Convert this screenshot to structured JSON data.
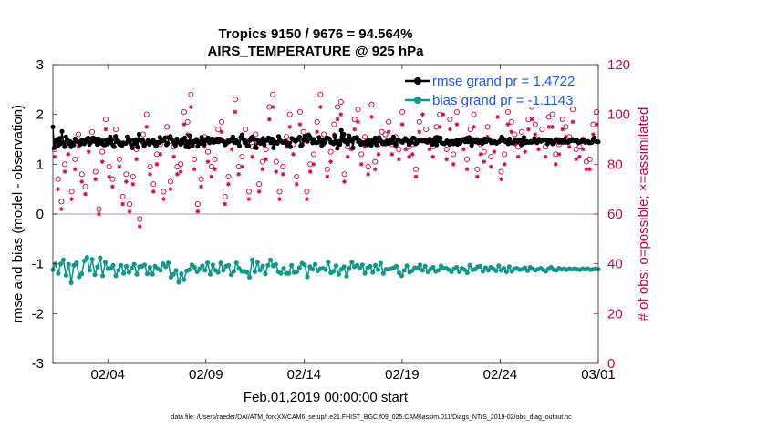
{
  "chart_data": {
    "type": "line",
    "title": "Tropics 9150 / 9676 = 94.564%",
    "subtitle": "AIRS_TEMPERATURE @ 925 hPa",
    "xlabel": "Feb.01,2019 00:00:00 start",
    "ylabel": "rmse and bias (model - observation)",
    "ylabel_right": "# of obs: o=possible; ×=assimilated",
    "ylim": [
      -3,
      3
    ],
    "ylim_right": [
      0,
      120
    ],
    "yticks": [
      "-3",
      "-2",
      "-1",
      "0",
      "1",
      "2",
      "3"
    ],
    "yticks_right": [
      "0",
      "20",
      "40",
      "60",
      "80",
      "100",
      "120"
    ],
    "xlim_days": [
      0.2,
      28.0
    ],
    "xticks": [
      {
        "label": "02/04",
        "day": 3
      },
      {
        "label": "02/09",
        "day": 8
      },
      {
        "label": "02/14",
        "day": 13
      },
      {
        "label": "02/19",
        "day": 18
      },
      {
        "label": "02/24",
        "day": 23
      },
      {
        "label": "03/01",
        "day": 28
      }
    ],
    "legend_position": "top-right",
    "footer": "data file: /Users/raeder/DAI/ATM_forcXX/CAM6_setup/f.e21.FHIST_BGC.f09_025.CAM6assim.011/Diags_NTrS_2019-02/obs_diag_output.nc",
    "series": [
      {
        "name": "rmse grand pr = 1.4722",
        "color": "#000000",
        "values": [
          1.75,
          1.33,
          1.45,
          1.5,
          1.38,
          1.52,
          1.41,
          1.66,
          1.44,
          1.35,
          1.55,
          1.48,
          1.42,
          1.46,
          1.35,
          1.43,
          1.39,
          1.51,
          1.47,
          1.45,
          1.44,
          1.4,
          1.48,
          1.48,
          1.41,
          1.46,
          1.51,
          1.53,
          1.4,
          1.44,
          1.52,
          1.53,
          1.46,
          1.51,
          1.4,
          1.51,
          1.43,
          1.42,
          1.47,
          1.39,
          1.39,
          1.49,
          1.41,
          1.43,
          1.55,
          1.49,
          1.39,
          1.35,
          1.56,
          1.45,
          1.47,
          1.4,
          1.43,
          1.38,
          1.43,
          1.42,
          1.42,
          1.55,
          1.46,
          1.48,
          1.39,
          1.33,
          1.48,
          1.41,
          1.5,
          1.34,
          1.6,
          1.49,
          1.46,
          1.48,
          1.37,
          1.42,
          1.43,
          1.48,
          1.4,
          1.44,
          1.46,
          1.48,
          1.41,
          1.36,
          1.44,
          1.43,
          1.54,
          1.46,
          1.47,
          1.48,
          1.53,
          1.39,
          1.42,
          1.53,
          1.56,
          1.5,
          1.46,
          1.42,
          1.38,
          1.51,
          1.45,
          1.44,
          1.4,
          1.5,
          1.43,
          1.53,
          1.35,
          1.45,
          1.34,
          1.57,
          1.43,
          1.38,
          1.46,
          1.45,
          1.5,
          1.36,
          1.46,
          1.42,
          1.54,
          1.46,
          1.4,
          1.5,
          1.48,
          1.53,
          1.43,
          1.45,
          1.51,
          1.44,
          1.5,
          1.45,
          1.51,
          1.45,
          1.51,
          1.48,
          1.47,
          1.45,
          1.39,
          1.42,
          1.47,
          1.45,
          1.47,
          1.48,
          1.55,
          1.44,
          1.49,
          1.43,
          1.45,
          1.37,
          1.54,
          1.59,
          1.5,
          1.43,
          1.45,
          1.37,
          1.37,
          1.48,
          1.53,
          1.55,
          1.5,
          1.34,
          1.33,
          1.48,
          1.44,
          1.42,
          1.47,
          1.52,
          1.39,
          1.48,
          1.48,
          1.53,
          1.52,
          1.43,
          1.51,
          1.33,
          1.45,
          1.44,
          1.42,
          1.56,
          1.48,
          1.46,
          1.44,
          1.44,
          1.46,
          1.45,
          1.39,
          1.42,
          1.35,
          1.52,
          1.51,
          1.49,
          1.46,
          1.5,
          1.5,
          1.55,
          1.37,
          1.39,
          1.49,
          1.56,
          1.49,
          1.46,
          1.59,
          1.55,
          1.51,
          1.43,
          1.5,
          1.44,
          1.43,
          1.44,
          1.54,
          1.47,
          1.38,
          1.49,
          1.43,
          1.48,
          1.53,
          1.52,
          1.51,
          1.44,
          1.44,
          1.41,
          1.57,
          1.45,
          1.32,
          1.46,
          1.4,
          1.68,
          1.48,
          1.6,
          1.45,
          1.48,
          1.41,
          1.57,
          1.47,
          1.48,
          1.33,
          1.53,
          1.52,
          1.54,
          1.45,
          1.47,
          1.4,
          1.44,
          1.41,
          1.43,
          1.45,
          1.39,
          1.48,
          1.44,
          1.38,
          1.48,
          1.44,
          1.53,
          1.39,
          1.47,
          1.54,
          1.48,
          1.45,
          1.41,
          1.44,
          1.41,
          1.47,
          1.42,
          1.47,
          1.43,
          1.5,
          1.55,
          1.42,
          1.39,
          1.49,
          1.48,
          1.46,
          1.46,
          1.44,
          1.47,
          1.52,
          1.48,
          1.46,
          1.4,
          1.47,
          1.44,
          1.53,
          1.52,
          1.41,
          1.43,
          1.47,
          1.49,
          1.49,
          1.47,
          1.47,
          1.49,
          1.45,
          1.44,
          1.45,
          1.5,
          1.49,
          1.4,
          1.46,
          1.53,
          1.39,
          1.54,
          1.47,
          1.53,
          1.43,
          1.42,
          1.41,
          1.43,
          1.47,
          1.45,
          1.4,
          1.46,
          1.46,
          1.41,
          1.46,
          1.47,
          1.4,
          1.48,
          1.42,
          1.47,
          1.49,
          1.48,
          1.45,
          1.52,
          1.45,
          1.54,
          1.45,
          1.38,
          1.5,
          1.45,
          1.45,
          1.5,
          1.43,
          1.44,
          1.47,
          1.42,
          1.44,
          1.51,
          1.45,
          1.49,
          1.5,
          1.48,
          1.43,
          1.44,
          1.44,
          1.45,
          1.42,
          1.44,
          1.45,
          1.48,
          1.55,
          1.48,
          1.5,
          1.45,
          1.46,
          1.41,
          1.51,
          1.43,
          1.43,
          1.44,
          1.49,
          1.47,
          1.45,
          1.49,
          1.48,
          1.39,
          1.5,
          1.54,
          1.43,
          1.46,
          1.44,
          1.44,
          1.46,
          1.44,
          1.45,
          1.52,
          1.46,
          1.43,
          1.47,
          1.48,
          1.46,
          1.48,
          1.49,
          1.49,
          1.49,
          1.41,
          1.48,
          1.45,
          1.47,
          1.41,
          1.43,
          1.48,
          1.5,
          1.48,
          1.44,
          1.49,
          1.49,
          1.44,
          1.5,
          1.44,
          1.45,
          1.44,
          1.47,
          1.47,
          1.5,
          1.48,
          1.47,
          1.49,
          1.47,
          1.43,
          1.45,
          1.45,
          1.48,
          1.47,
          1.44,
          1.45,
          1.46,
          1.43,
          1.43,
          1.44,
          1.49,
          1.53,
          1.46,
          1.45,
          1.45
        ]
      },
      {
        "name": "bias grand pr = -1.1143",
        "color": "#119988",
        "values": [
          -1.12,
          -1.0,
          -1.19,
          -1.0,
          -0.92,
          -1.23,
          -1.01,
          -1.38,
          -1.03,
          -0.98,
          -1.26,
          -1.2,
          -0.94,
          -0.87,
          -1.13,
          -0.91,
          -1.22,
          -1.06,
          -0.88,
          -1.24,
          -0.97,
          -1.1,
          -1.09,
          -1.03,
          -1.24,
          -1.13,
          -1.03,
          -1.19,
          -1.05,
          -1.17,
          -1.09,
          -1.01,
          -1.21,
          -1.06,
          -1.05,
          -1.02,
          -1.2,
          -1.07,
          -1.21,
          -1.05,
          -1.1,
          -1.13,
          -1.0,
          -1.06,
          -0.98,
          -1.27,
          -1.21,
          -1.13,
          -1.37,
          -1.2,
          -1.32,
          -1.14,
          -1.12,
          -1.02,
          -1.07,
          -1.16,
          -1.1,
          -1.04,
          -1.13,
          -0.98,
          -1.21,
          -1.02,
          -1.13,
          -1.17,
          -0.98,
          -1.13,
          -1.05,
          -1.03,
          -1.22,
          -1.15,
          -0.98,
          -1.09,
          -1.15,
          -1.15,
          -1.17,
          -1.27,
          -0.92,
          -1.16,
          -0.97,
          -1.13,
          -1.05,
          -1.2,
          -1.03,
          -0.92,
          -1.04,
          -1.01,
          -1.16,
          -1.19,
          -1.09,
          -1.19,
          -1.19,
          -1.03,
          -1.17,
          -1.16,
          -1.08,
          -0.99,
          -1.02,
          -1.26,
          -1.06,
          -1.11,
          -1.01,
          -1.14,
          -1.1,
          -1.09,
          -1.12,
          -0.97,
          -1.18,
          -1.15,
          -1.04,
          -1.21,
          -1.11,
          -1.06,
          -1.25,
          -1.09,
          -0.97,
          -1.06,
          -1.03,
          -1.09,
          -1.02,
          -1.19,
          -1.08,
          -1.05,
          -1.17,
          -1.03,
          -1.12,
          -0.99,
          -1.19,
          -1.11,
          -1.11,
          -1.1,
          -1.08,
          -1.05,
          -1.18,
          -1.24,
          -1.13,
          -1.04,
          -1.17,
          -1.14,
          -1.08,
          -1.09,
          -1.02,
          -1.13,
          -1.05,
          -1.16,
          -1.11,
          -1.07,
          -1.15,
          -1.13,
          -1.04,
          -1.09,
          -1.09,
          -1.12,
          -1.16,
          -1.1,
          -1.07,
          -1.16,
          -1.09,
          -1.12,
          -1.18,
          -1.03,
          -1.12,
          -1.11,
          -1.06,
          -1.05,
          -1.15,
          -1.08,
          -1.13,
          -1.07,
          -1.1,
          -1.14,
          -1.04,
          -1.13,
          -1.09,
          -1.16,
          -1.06,
          -1.15,
          -1.1,
          -1.09,
          -1.12,
          -1.11,
          -1.08,
          -1.14,
          -1.07,
          -1.1,
          -1.13,
          -1.11,
          -1.09,
          -1.12,
          -1.15,
          -1.1,
          -1.07,
          -1.12,
          -1.13,
          -1.09,
          -1.11,
          -1.1,
          -1.12,
          -1.1,
          -1.11,
          -1.1,
          -1.11,
          -1.12,
          -1.1,
          -1.11,
          -1.1,
          -1.12,
          -1.11,
          -1.1,
          -1.11
        ]
      }
    ],
    "obs_possible": [
      86,
      74,
      65,
      80,
      88,
      69,
      82,
      92,
      76,
      71,
      89,
      93,
      77,
      62,
      85,
      98,
      79,
      74,
      94,
      82,
      67,
      76,
      64,
      75,
      86,
      58,
      92,
      100,
      79,
      72,
      84,
      88,
      69,
      95,
      73,
      87,
      79,
      80,
      101,
      97,
      108,
      82,
      64,
      74,
      91,
      85,
      79,
      82,
      94,
      97,
      67,
      75,
      90,
      106,
      79,
      83,
      94,
      69,
      87,
      92,
      72,
      81,
      86,
      103,
      108,
      81,
      69,
      79,
      91,
      100,
      88,
      75,
      101,
      93,
      69,
      80,
      84,
      97,
      108,
      92,
      78,
      85,
      96,
      103,
      105,
      76,
      87,
      90,
      98,
      102,
      84,
      91,
      79,
      104,
      81,
      88,
      93,
      92,
      97,
      88,
      91,
      86,
      101,
      90,
      87,
      88,
      78,
      97,
      105,
      94,
      90,
      87,
      95,
      100,
      105,
      86,
      98,
      84,
      101,
      110,
      90,
      82,
      94,
      100,
      78,
      88,
      85,
      95,
      83,
      89,
      104,
      77,
      84,
      101,
      97,
      92,
      87,
      93,
      89,
      98,
      103,
      96,
      90,
      94,
      87,
      99,
      100,
      84,
      88,
      98,
      95,
      91,
      102,
      86,
      87,
      90,
      81,
      82,
      96,
      101
    ],
    "obs_assimilated": [
      83,
      70,
      62,
      77,
      84,
      66,
      78,
      87,
      73,
      68,
      85,
      89,
      74,
      60,
      81,
      94,
      75,
      71,
      90,
      79,
      64,
      73,
      61,
      72,
      82,
      55,
      88,
      95,
      76,
      69,
      80,
      84,
      66,
      91,
      70,
      83,
      76,
      77,
      96,
      92,
      103,
      78,
      61,
      71,
      87,
      81,
      75,
      78,
      90,
      93,
      64,
      72,
      86,
      101,
      76,
      79,
      90,
      66,
      83,
      88,
      69,
      78,
      82,
      98,
      103,
      77,
      66,
      76,
      87,
      95,
      84,
      72,
      96,
      89,
      66,
      77,
      80,
      93,
      103,
      88,
      75,
      81,
      92,
      98,
      100,
      73,
      83,
      86,
      94,
      97,
      80,
      87,
      76,
      99,
      78,
      84,
      89,
      88,
      93,
      84,
      87,
      82,
      96,
      86,
      83,
      84,
      75,
      93,
      100,
      90,
      86,
      83,
      91,
      95,
      100,
      82,
      94,
      80,
      96,
      105,
      86,
      78,
      90,
      95,
      75,
      84,
      81,
      91,
      79,
      85,
      99,
      74,
      80,
      96,
      93,
      88,
      83,
      89,
      85,
      94,
      98,
      92,
      86,
      90,
      83,
      95,
      95,
      80,
      84,
      94,
      91,
      87,
      97,
      82,
      83,
      86,
      78,
      78,
      92,
      96
    ]
  },
  "colors": {
    "rmse": "#000000",
    "bias": "#119988",
    "obs": "#cc0055",
    "legend_text": "#1a55ff",
    "zero_line": "#b3b3b3"
  }
}
